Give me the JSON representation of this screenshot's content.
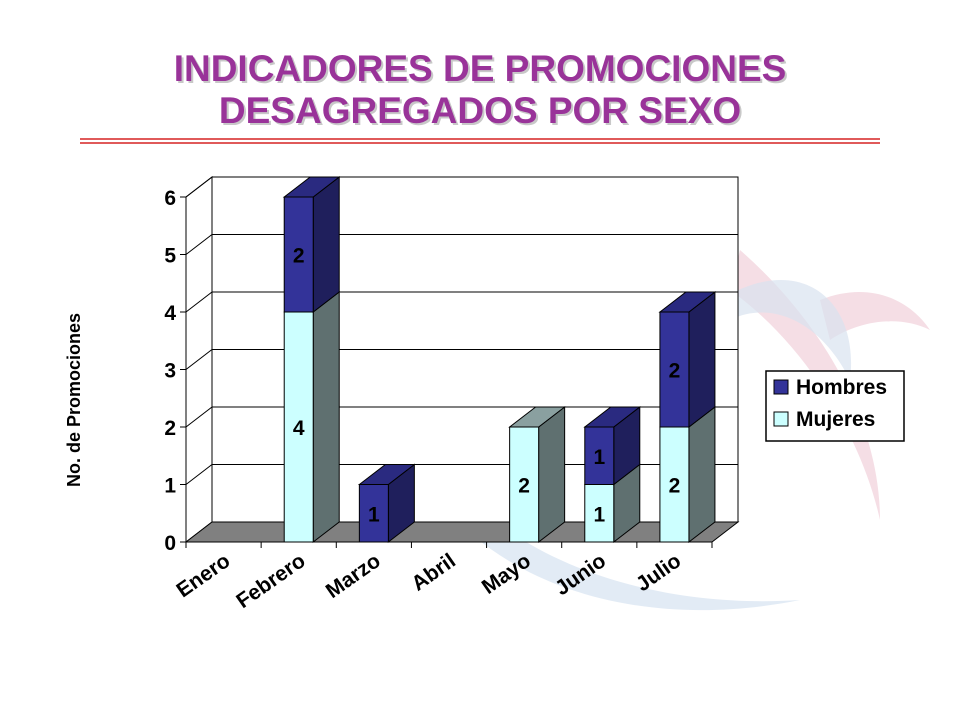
{
  "title": {
    "line1": "INDICADORES DE PROMOCIONES",
    "line2": "DESAGREGADOS POR SEXO"
  },
  "colors": {
    "title": "#993399",
    "hombres": "#333399",
    "mujeres": "#CCFFFF",
    "floor": "#808080",
    "rule": "#E05A5A"
  },
  "chart_data": {
    "type": "bar",
    "stacked": true,
    "style": "3d-stacked-column",
    "categories": [
      "Enero",
      "Febrero",
      "Marzo",
      "Abril",
      "Mayo",
      "Junio",
      "Julio"
    ],
    "series": [
      {
        "name": "Mujeres",
        "values": [
          0,
          4,
          0,
          0,
          2,
          1,
          2
        ]
      },
      {
        "name": "Hombres",
        "values": [
          0,
          2,
          1,
          0,
          0,
          1,
          2
        ]
      }
    ],
    "ylabel": "No. de Promociones",
    "xlabel": "",
    "ylim": [
      0,
      6
    ],
    "yticks": [
      "0",
      "1",
      "2",
      "3",
      "4",
      "5",
      "6"
    ],
    "grid": true,
    "legend": {
      "position": "right",
      "entries": [
        "Hombres",
        "Mujeres"
      ]
    },
    "data_labels": true
  }
}
